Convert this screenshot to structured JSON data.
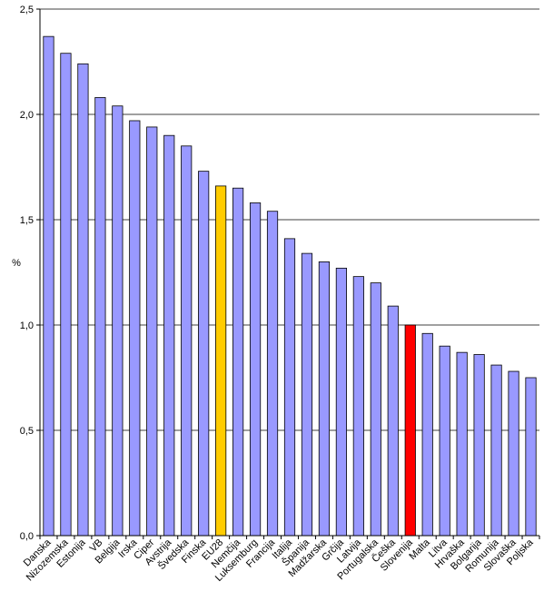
{
  "chart_data": {
    "type": "bar",
    "ylabel": "%",
    "ylim": [
      0,
      2.5
    ],
    "yticks": [
      "0,0",
      "0,5",
      "1,0",
      "1,5",
      "2,0",
      "2,5"
    ],
    "ytick_values": [
      0,
      0.5,
      1.0,
      1.5,
      2.0,
      2.5
    ],
    "grid": "horizontal",
    "categories": [
      "Danska",
      "Nizozemska",
      "Estonija",
      "VB",
      "Belgija",
      "Irska",
      "Ciper",
      "Avstrija",
      "Švedska",
      "Finska",
      "EU28",
      "Nemčija",
      "Luksemburg",
      "Francija",
      "Italija",
      "Španija",
      "Madžarska",
      "Grčija",
      "Latvija",
      "Portugalska",
      "Češka",
      "Slovenija",
      "Malta",
      "Litva",
      "Hrvaška",
      "Bolgarija",
      "Romunija",
      "Slovaška",
      "Poljska"
    ],
    "values": [
      2.37,
      2.29,
      2.24,
      2.08,
      2.04,
      1.97,
      1.94,
      1.9,
      1.85,
      1.73,
      1.66,
      1.65,
      1.58,
      1.54,
      1.41,
      1.34,
      1.3,
      1.27,
      1.23,
      1.2,
      1.09,
      1.0,
      0.96,
      0.9,
      0.87,
      0.86,
      0.81,
      0.78,
      0.75
    ],
    "colors": {
      "default": "#9999ff",
      "highlight_eu": "#ffcc00",
      "highlight_si": "#ff0000",
      "edge": "#000000",
      "grid": "#000000"
    },
    "highlights": {
      "EU28": "#ffcc00",
      "Slovenija": "#ff0000"
    }
  }
}
